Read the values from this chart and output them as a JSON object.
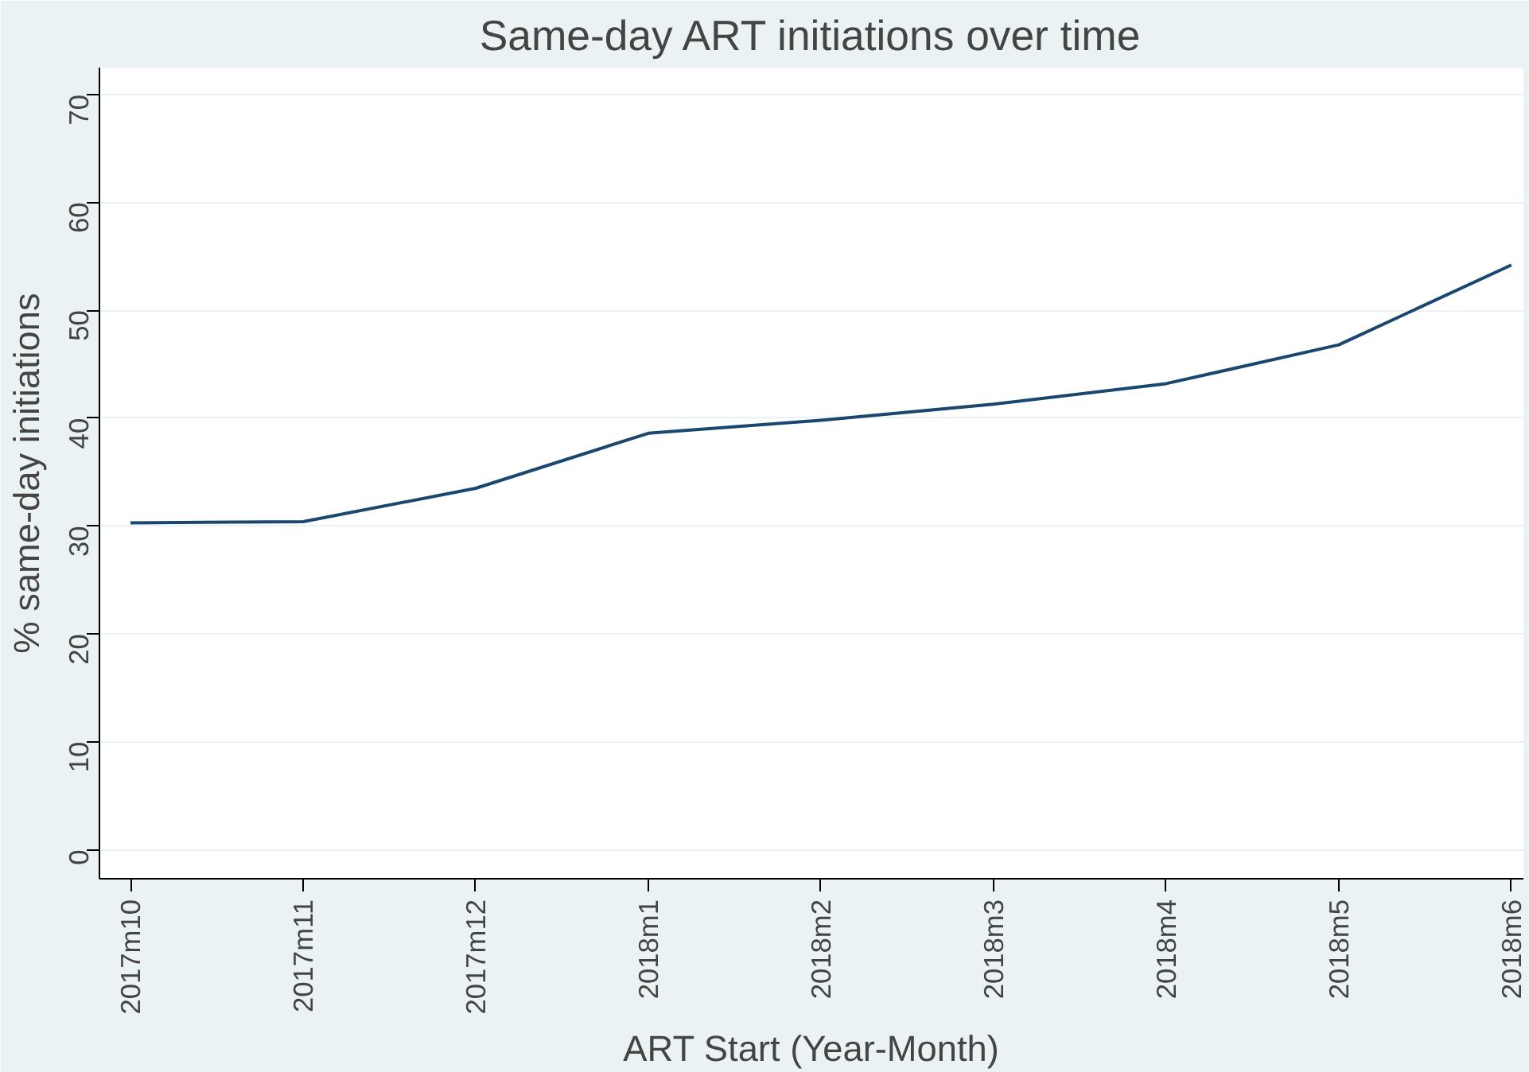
{
  "chart_data": {
    "type": "line",
    "title": "Same-day ART initiations over time",
    "xlabel": "ART Start (Year-Month)",
    "ylabel": "% same-day initiations",
    "categories": [
      "2017m10",
      "2017m11",
      "2017m12",
      "2018m1",
      "2018m2",
      "2018m3",
      "2018m4",
      "2018m5",
      "2018m6"
    ],
    "series": [
      {
        "color": "#1a476f",
        "values": [
          30.3,
          30.4,
          33.5,
          38.6,
          39.8,
          41.3,
          43.2,
          46.8,
          54.2
        ]
      }
    ],
    "ylim": [
      -2.7,
      72.5
    ],
    "yticks": [
      0,
      10,
      20,
      30,
      40,
      50,
      60,
      70
    ],
    "grid": "y",
    "marker": "none",
    "line_style": "solid"
  }
}
